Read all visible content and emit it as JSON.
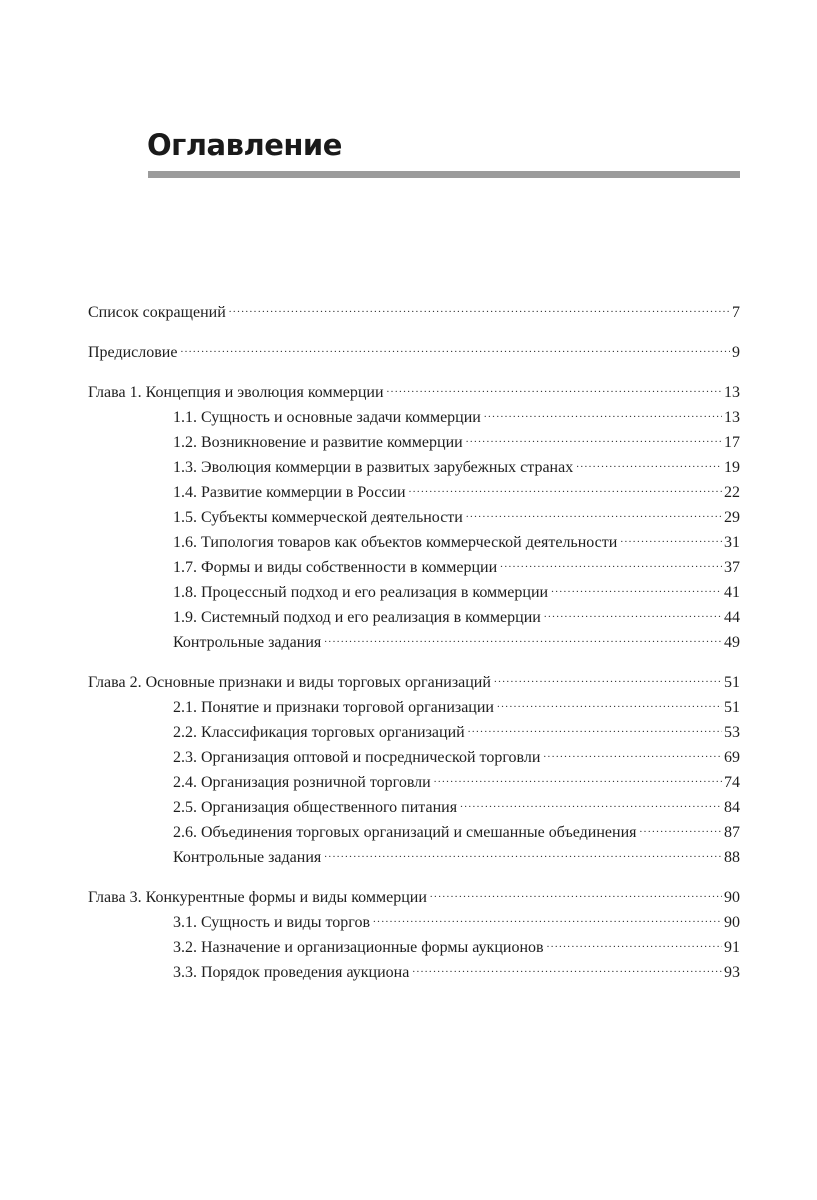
{
  "heading": "Оглавление",
  "colors": {
    "rule": "#9b9b9b",
    "text": "#1e1e1e"
  },
  "entries": [
    {
      "level": "chapter",
      "title": "Список сокращений",
      "page": "7"
    },
    {
      "level": "chapter",
      "title": "Предисловие",
      "page": "9"
    },
    {
      "level": "chapter",
      "title": "Глава 1. Концепция и эволюция коммерции",
      "page": "13"
    },
    {
      "level": "section",
      "title": "1.1. Сущность и основные задачи коммерции",
      "page": "13"
    },
    {
      "level": "section",
      "title": "1.2. Возникновение и развитие коммерции",
      "page": "17"
    },
    {
      "level": "section",
      "title": "1.3. Эволюция коммерции в развитых зарубежных странах",
      "page": "19"
    },
    {
      "level": "section",
      "title": "1.4. Развитие коммерции в России",
      "page": "22"
    },
    {
      "level": "section",
      "title": "1.5. Субъекты коммерческой деятельности",
      "page": "29"
    },
    {
      "level": "section",
      "title": "1.6. Типология товаров как объектов коммерческой деятельности",
      "page": "31"
    },
    {
      "level": "section",
      "title": "1.7. Формы и виды собственности в коммерции",
      "page": "37"
    },
    {
      "level": "section",
      "title": "1.8. Процессный подход и его реализация в коммерции",
      "page": "41"
    },
    {
      "level": "section",
      "title": "1.9. Системный подход и его реализация в коммерции",
      "page": "44"
    },
    {
      "level": "section",
      "title": "Контрольные задания",
      "page": "49"
    },
    {
      "level": "chapter",
      "title": "Глава 2. Основные признаки и виды торговых организаций",
      "page": "51"
    },
    {
      "level": "section",
      "title": "2.1. Понятие и признаки торговой организации",
      "page": "51"
    },
    {
      "level": "section",
      "title": "2.2. Классификация торговых организаций",
      "page": "53"
    },
    {
      "level": "section",
      "title": "2.3. Организация оптовой и посреднической торговли",
      "page": "69"
    },
    {
      "level": "section",
      "title": "2.4. Организация розничной торговли",
      "page": "74"
    },
    {
      "level": "section",
      "title": "2.5. Организация общественного питания",
      "page": "84"
    },
    {
      "level": "section",
      "title": "2.6. Объединения торговых организаций и смешанные объединения",
      "page": "87"
    },
    {
      "level": "section",
      "title": "Контрольные задания",
      "page": "88"
    },
    {
      "level": "chapter",
      "title": "Глава 3. Конкурентные формы и виды коммерции",
      "page": "90"
    },
    {
      "level": "section",
      "title": "3.1. Сущность и виды торгов",
      "page": "90"
    },
    {
      "level": "section",
      "title": "3.2. Назначение и организационные формы аукционов",
      "page": "91"
    },
    {
      "level": "section",
      "title": "3.3. Порядок проведения аукциона",
      "page": "93"
    }
  ]
}
